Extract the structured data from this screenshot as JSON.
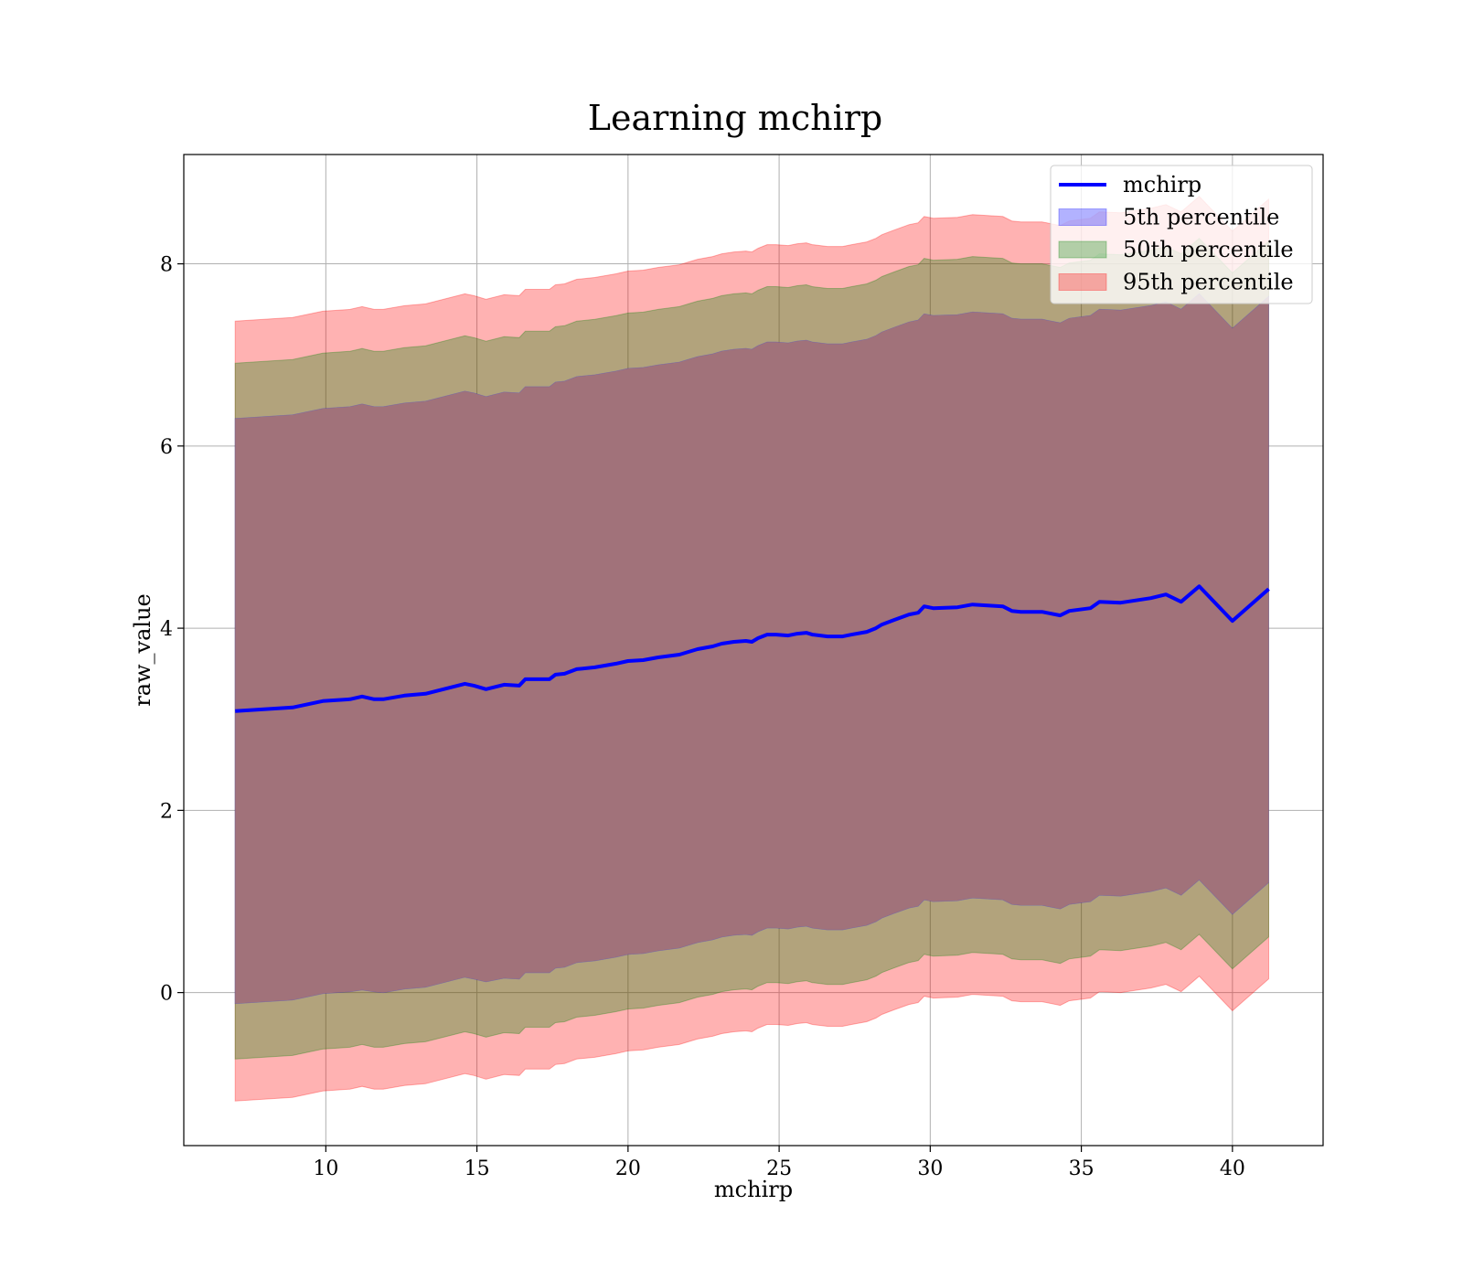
{
  "chart_data": {
    "type": "area",
    "title": "Learning mchirp",
    "xlabel": "mchirp",
    "ylabel": "raw_value",
    "xlim": [
      5.3,
      43.0
    ],
    "ylim": [
      -1.68,
      9.2
    ],
    "xticks": [
      10,
      15,
      20,
      25,
      30,
      35,
      40
    ],
    "yticks": [
      0,
      2,
      4,
      6,
      8
    ],
    "grid": true,
    "legend_position": "top-right",
    "colors": {
      "line": "#0000ff",
      "band_5": "#0000ff",
      "band_50": "#008000",
      "band_95": "#ff0000",
      "overlap_fill": "#a1727a",
      "grid": "#b0b0b0"
    },
    "legend": [
      {
        "label": "mchirp",
        "kind": "line",
        "color": "#0000ff"
      },
      {
        "label": "5th percentile",
        "kind": "patch",
        "color": "#0000ff"
      },
      {
        "label": "50th percentile",
        "kind": "patch",
        "color": "#008000"
      },
      {
        "label": "95th percentile",
        "kind": "patch",
        "color": "#ff0000"
      }
    ],
    "x": [
      7.0,
      8.9,
      9.9,
      10.8,
      11.2,
      11.6,
      11.9,
      12.6,
      13.3,
      14.6,
      14.9,
      15.3,
      15.9,
      16.4,
      16.6,
      17.4,
      17.6,
      17.9,
      18.3,
      18.9,
      19.6,
      20.0,
      20.5,
      21.0,
      21.7,
      22.0,
      22.3,
      22.8,
      23.1,
      23.5,
      23.9,
      24.1,
      24.3,
      24.6,
      24.9,
      25.3,
      25.6,
      25.9,
      26.1,
      26.6,
      27.1,
      27.4,
      27.9,
      28.2,
      28.4,
      28.8,
      29.3,
      29.6,
      29.8,
      30.1,
      30.9,
      31.4,
      32.4,
      32.7,
      33.0,
      33.7,
      34.3,
      34.6,
      35.3,
      35.6,
      36.3,
      37.3,
      37.8,
      38.3,
      38.9,
      40.0,
      41.2
    ],
    "series": [
      {
        "name": "mchirp",
        "role": "line",
        "values": [
          3.09,
          3.13,
          3.2,
          3.22,
          3.25,
          3.22,
          3.22,
          3.26,
          3.28,
          3.39,
          3.37,
          3.33,
          3.38,
          3.37,
          3.44,
          3.44,
          3.49,
          3.5,
          3.55,
          3.57,
          3.61,
          3.64,
          3.65,
          3.68,
          3.71,
          3.74,
          3.77,
          3.8,
          3.83,
          3.85,
          3.86,
          3.85,
          3.89,
          3.93,
          3.93,
          3.92,
          3.94,
          3.95,
          3.93,
          3.91,
          3.91,
          3.93,
          3.96,
          4.0,
          4.04,
          4.09,
          4.15,
          4.17,
          4.24,
          4.22,
          4.23,
          4.26,
          4.24,
          4.19,
          4.18,
          4.18,
          4.14,
          4.19,
          4.22,
          4.29,
          4.28,
          4.33,
          4.37,
          4.29,
          4.46,
          4.08,
          4.43
        ]
      },
      {
        "name": "5th percentile",
        "role": "band",
        "lower": [
          -0.12,
          -0.08,
          -0.01,
          0.01,
          0.03,
          0.01,
          0.0,
          0.04,
          0.06,
          0.17,
          0.15,
          0.12,
          0.16,
          0.15,
          0.22,
          0.22,
          0.27,
          0.28,
          0.33,
          0.35,
          0.39,
          0.42,
          0.43,
          0.46,
          0.49,
          0.52,
          0.55,
          0.58,
          0.61,
          0.63,
          0.64,
          0.63,
          0.67,
          0.71,
          0.71,
          0.7,
          0.72,
          0.73,
          0.71,
          0.69,
          0.69,
          0.71,
          0.74,
          0.78,
          0.82,
          0.87,
          0.93,
          0.95,
          1.02,
          1.0,
          1.01,
          1.04,
          1.02,
          0.97,
          0.96,
          0.96,
          0.92,
          0.97,
          1.0,
          1.07,
          1.06,
          1.11,
          1.15,
          1.07,
          1.24,
          0.86,
          1.21
        ],
        "upper": [
          6.3,
          6.34,
          6.41,
          6.43,
          6.46,
          6.43,
          6.43,
          6.47,
          6.49,
          6.6,
          6.58,
          6.54,
          6.59,
          6.58,
          6.65,
          6.65,
          6.7,
          6.71,
          6.76,
          6.78,
          6.82,
          6.85,
          6.86,
          6.89,
          6.92,
          6.95,
          6.98,
          7.01,
          7.04,
          7.06,
          7.07,
          7.06,
          7.1,
          7.14,
          7.14,
          7.13,
          7.15,
          7.16,
          7.14,
          7.12,
          7.12,
          7.14,
          7.17,
          7.21,
          7.25,
          7.3,
          7.36,
          7.38,
          7.45,
          7.43,
          7.44,
          7.47,
          7.45,
          7.4,
          7.39,
          7.39,
          7.35,
          7.4,
          7.43,
          7.5,
          7.49,
          7.54,
          7.58,
          7.5,
          7.67,
          7.29,
          7.64
        ]
      },
      {
        "name": "50th percentile",
        "role": "band",
        "lower": [
          -0.73,
          -0.69,
          -0.62,
          -0.6,
          -0.57,
          -0.6,
          -0.6,
          -0.56,
          -0.54,
          -0.43,
          -0.45,
          -0.49,
          -0.44,
          -0.45,
          -0.38,
          -0.38,
          -0.33,
          -0.32,
          -0.27,
          -0.25,
          -0.21,
          -0.18,
          -0.17,
          -0.14,
          -0.11,
          -0.08,
          -0.05,
          -0.02,
          0.01,
          0.03,
          0.04,
          0.03,
          0.07,
          0.11,
          0.11,
          0.1,
          0.12,
          0.13,
          0.11,
          0.09,
          0.09,
          0.11,
          0.14,
          0.18,
          0.22,
          0.27,
          0.33,
          0.35,
          0.42,
          0.4,
          0.41,
          0.44,
          0.42,
          0.37,
          0.36,
          0.36,
          0.32,
          0.37,
          0.4,
          0.47,
          0.46,
          0.51,
          0.55,
          0.47,
          0.64,
          0.26,
          0.61
        ],
        "upper": [
          6.91,
          6.95,
          7.02,
          7.04,
          7.07,
          7.04,
          7.04,
          7.08,
          7.1,
          7.21,
          7.19,
          7.15,
          7.2,
          7.19,
          7.26,
          7.26,
          7.31,
          7.32,
          7.37,
          7.39,
          7.43,
          7.46,
          7.47,
          7.5,
          7.53,
          7.56,
          7.59,
          7.62,
          7.65,
          7.67,
          7.68,
          7.67,
          7.71,
          7.75,
          7.75,
          7.74,
          7.76,
          7.77,
          7.75,
          7.73,
          7.73,
          7.75,
          7.78,
          7.82,
          7.86,
          7.91,
          7.97,
          7.99,
          8.06,
          8.04,
          8.05,
          8.08,
          8.06,
          8.01,
          8.0,
          8.0,
          7.96,
          8.01,
          8.04,
          8.11,
          8.1,
          8.15,
          8.19,
          8.11,
          8.28,
          7.9,
          8.25
        ]
      },
      {
        "name": "95th percentile",
        "role": "band",
        "lower": [
          -1.19,
          -1.15,
          -1.08,
          -1.06,
          -1.03,
          -1.06,
          -1.06,
          -1.02,
          -1.0,
          -0.89,
          -0.91,
          -0.95,
          -0.9,
          -0.91,
          -0.84,
          -0.84,
          -0.79,
          -0.78,
          -0.73,
          -0.71,
          -0.67,
          -0.64,
          -0.63,
          -0.6,
          -0.57,
          -0.54,
          -0.51,
          -0.48,
          -0.45,
          -0.43,
          -0.42,
          -0.43,
          -0.39,
          -0.35,
          -0.35,
          -0.36,
          -0.34,
          -0.33,
          -0.35,
          -0.37,
          -0.37,
          -0.35,
          -0.32,
          -0.28,
          -0.24,
          -0.19,
          -0.13,
          -0.11,
          -0.04,
          -0.06,
          -0.05,
          -0.02,
          -0.04,
          -0.09,
          -0.1,
          -0.1,
          -0.14,
          -0.09,
          -0.06,
          0.01,
          0.0,
          0.05,
          0.09,
          0.01,
          0.18,
          -0.2,
          0.15
        ],
        "upper": [
          7.37,
          7.41,
          7.48,
          7.5,
          7.53,
          7.5,
          7.5,
          7.54,
          7.56,
          7.67,
          7.65,
          7.61,
          7.66,
          7.65,
          7.72,
          7.72,
          7.77,
          7.78,
          7.83,
          7.85,
          7.89,
          7.92,
          7.93,
          7.96,
          7.99,
          8.02,
          8.05,
          8.08,
          8.11,
          8.13,
          8.14,
          8.13,
          8.17,
          8.21,
          8.21,
          8.2,
          8.22,
          8.23,
          8.21,
          8.19,
          8.19,
          8.21,
          8.24,
          8.28,
          8.32,
          8.37,
          8.43,
          8.45,
          8.52,
          8.5,
          8.51,
          8.54,
          8.52,
          8.47,
          8.46,
          8.46,
          8.42,
          8.47,
          8.5,
          8.57,
          8.56,
          8.61,
          8.65,
          8.57,
          8.74,
          8.36,
          8.71
        ]
      }
    ]
  }
}
